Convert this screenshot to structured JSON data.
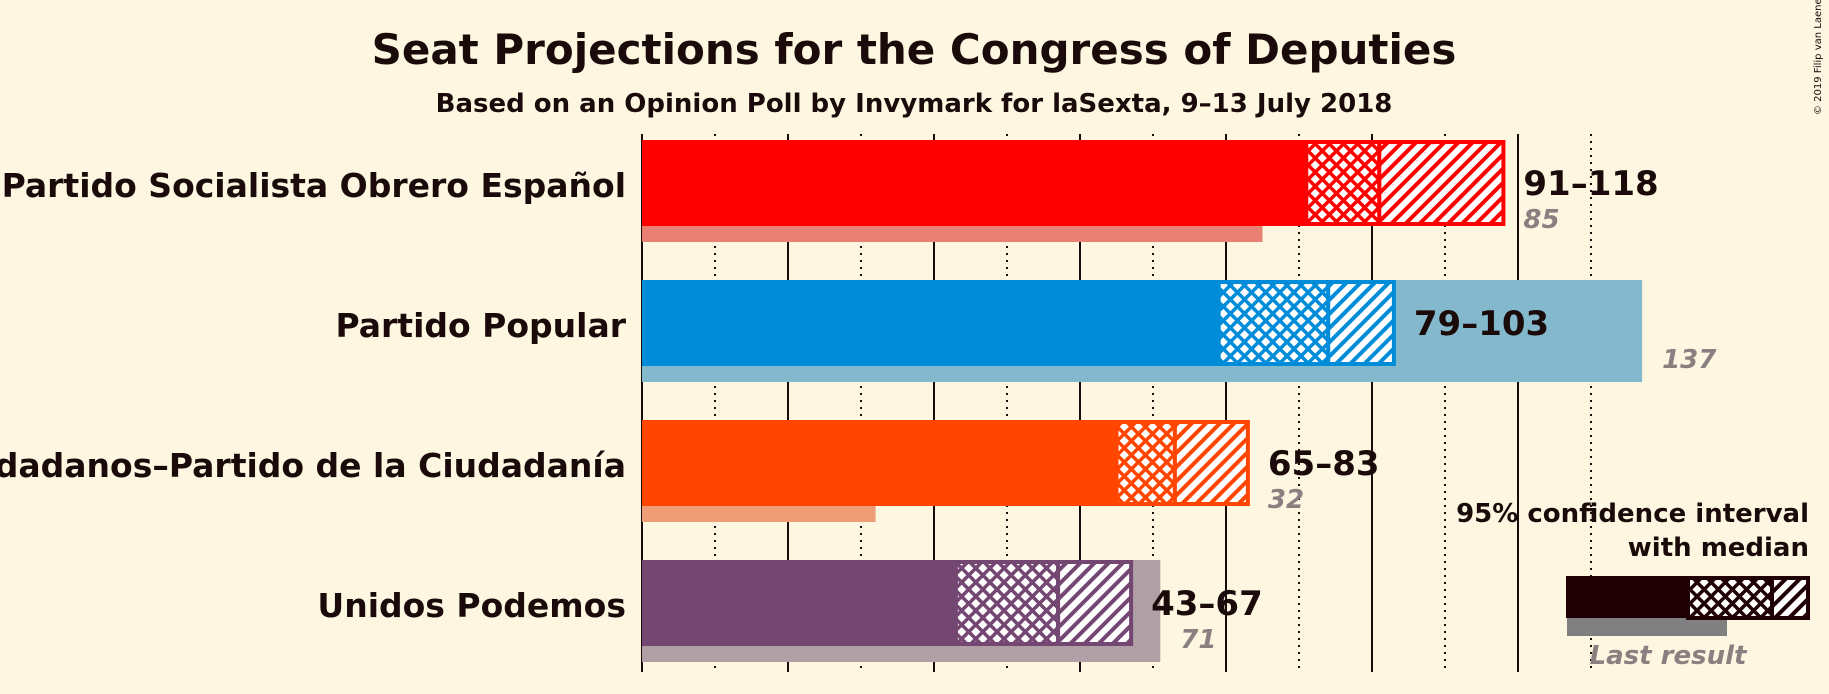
{
  "header": {
    "title": "Seat Projections for the Congress of Deputies",
    "subtitle": "Based on an Opinion Poll by Invymark for laSexta, 9–13 July 2018"
  },
  "copyright": "© 2019 Filip van Laenen",
  "legend": {
    "ci_label_line1": "95% confidence interval",
    "ci_label_line2": "with median",
    "last_result_label": "Last result",
    "colors": {
      "main": "#1e0005",
      "last": "#808080"
    }
  },
  "chart_data": {
    "type": "bar",
    "orientation": "horizontal",
    "title": "Seat Projections for the Congress of Deputies",
    "subtitle": "Based on an Opinion Poll by Invymark for laSexta, 9–13 July 2018",
    "xlim": [
      0,
      137
    ],
    "major_gridlines": [
      0,
      20,
      40,
      60,
      80,
      100,
      120
    ],
    "minor_gridlines": [
      10,
      30,
      50,
      70,
      90,
      110,
      130
    ],
    "series": [
      {
        "party": "Partido Socialista Obrero Español",
        "range_label": "91–118",
        "low": 91,
        "median": 101,
        "high": 118,
        "last_result": 85,
        "last_label": "85",
        "color": "#ff0000",
        "last_color": "#e88074"
      },
      {
        "party": "Partido Popular",
        "range_label": "79–103",
        "low": 79,
        "median": 94,
        "high": 103,
        "last_result": 137,
        "last_label": "137",
        "color": "#008cd9",
        "last_color": "#84b8cc"
      },
      {
        "party": "Ciudadanos–Partido de la Ciudadanía",
        "range_label": "65–83",
        "low": 65,
        "median": 73,
        "high": 83,
        "last_result": 32,
        "last_label": "32",
        "color": "#ff4500",
        "last_color": "#ee9e76"
      },
      {
        "party": "Unidos Podemos",
        "range_label": "43–67",
        "low": 43,
        "median": 57,
        "high": 67,
        "last_result": 71,
        "last_label": "71",
        "color": "#744672",
        "last_color": "#b0a0a6"
      }
    ]
  }
}
